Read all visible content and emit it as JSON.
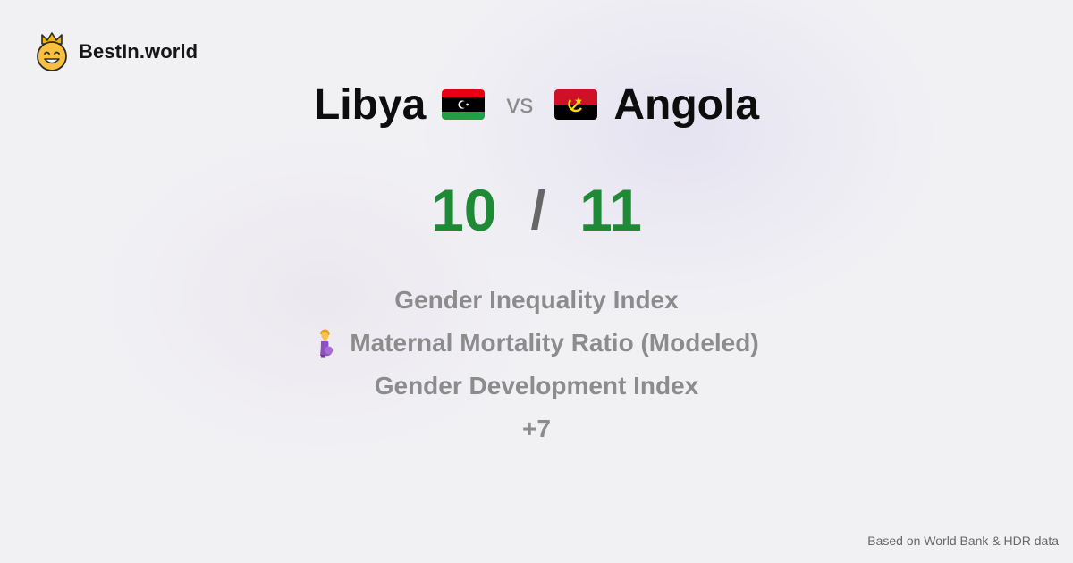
{
  "brand": {
    "name": "BestIn.world",
    "logo_icon": "crown-smiley-icon"
  },
  "comparison": {
    "left_country": "Libya",
    "left_flag_icon": "libya-flag-icon",
    "vs": "vs",
    "right_country": "Angola",
    "right_flag_icon": "angola-flag-icon"
  },
  "scores": {
    "left": "10",
    "separator": "/",
    "right": "11",
    "color": "#1f8a36"
  },
  "metrics": [
    {
      "label": "Gender Inequality Index"
    },
    {
      "label": "Maternal Mortality Ratio (Modeled)",
      "icon": "pregnant-woman-icon"
    },
    {
      "label": "Gender Development Index"
    }
  ],
  "more_label": "+7",
  "footer": {
    "source": "Based on World Bank & HDR data"
  }
}
